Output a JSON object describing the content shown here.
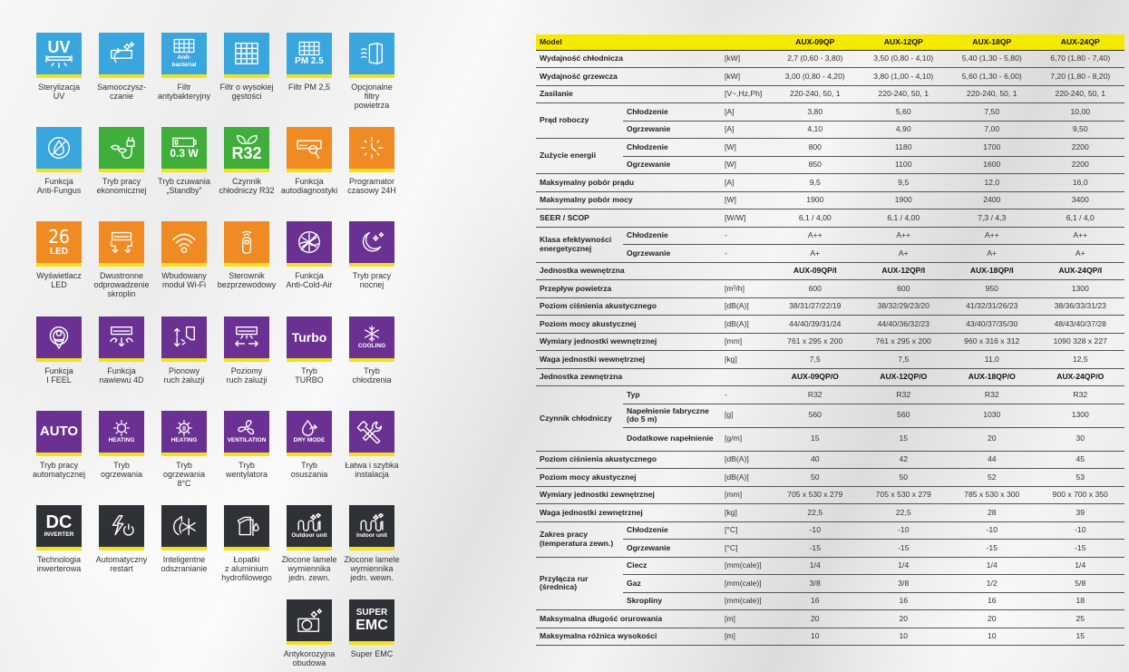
{
  "features": [
    {
      "label": "Sterylizacja\nUV",
      "color": "blue",
      "icon": "uv-lamp-icon",
      "text": "UV",
      "sub": ""
    },
    {
      "label": "Samooczysz-\nczanie",
      "color": "blue",
      "icon": "self-clean-icon",
      "text": "",
      "sub": ""
    },
    {
      "label": "Filtr\nantybakteryjny",
      "color": "blue",
      "icon": "antibacterial-filter-icon",
      "text": "",
      "sub": "Anti-\nbacterial"
    },
    {
      "label": "Filtr o wysokiej\ngęstości",
      "color": "blue",
      "icon": "high-density-filter-icon",
      "text": "",
      "sub": ""
    },
    {
      "label": "Filtr PM 2,5",
      "color": "blue",
      "icon": "pm25-filter-icon",
      "text": "",
      "sub": "PM 2.5"
    },
    {
      "label": "Opcjonalne\nfiltry\npowietrza",
      "color": "blue",
      "icon": "optional-filters-icon",
      "text": "",
      "sub": ""
    },
    {
      "label": "Funkcja\nAnti-Fungus",
      "color": "blue",
      "icon": "anti-fungus-icon",
      "text": "",
      "sub": ""
    },
    {
      "label": "Tryb pracy\nekonomicznej",
      "color": "green",
      "icon": "eco-plug-icon",
      "text": "",
      "sub": ""
    },
    {
      "label": "Tryb czuwania\n„Standby”",
      "color": "green",
      "icon": "battery-standby-icon",
      "text": "",
      "sub": "0.3 W"
    },
    {
      "label": "Czynnik\nchłodniczy R32",
      "color": "green",
      "icon": "leaves-icon",
      "text": "R32",
      "sub": ""
    },
    {
      "label": "Funkcja\nautodiagnostyki",
      "color": "orange",
      "icon": "self-diagnosis-icon",
      "text": "",
      "sub": ""
    },
    {
      "label": "Programator\nczasowy 24H",
      "color": "orange",
      "icon": "clock-timer-icon",
      "text": "",
      "sub": ""
    },
    {
      "label": "Wyświetlacz\nLED",
      "color": "orange",
      "icon": "led-display-icon",
      "text": "26",
      "sub": "LED"
    },
    {
      "label": "Dwustronne\nodprowadzenie\nskroplin",
      "color": "orange",
      "icon": "dual-drain-icon",
      "text": "",
      "sub": ""
    },
    {
      "label": "Wbudowany\nmoduł Wi-Fi",
      "color": "orange",
      "icon": "wifi-icon",
      "text": "",
      "sub": ""
    },
    {
      "label": "Sterownik\nbezprzewodowy",
      "color": "orange",
      "icon": "remote-control-icon",
      "text": "",
      "sub": ""
    },
    {
      "label": "Funkcja\nAnti-Cold-Air",
      "color": "purple",
      "icon": "anti-cold-air-icon",
      "text": "",
      "sub": ""
    },
    {
      "label": "Tryb pracy\nnocnej",
      "color": "purple",
      "icon": "moon-stars-icon",
      "text": "",
      "sub": ""
    },
    {
      "label": "Funkcja\nI FEEL",
      "color": "purple",
      "icon": "i-feel-icon",
      "text": "",
      "sub": ""
    },
    {
      "label": "Funkcja\nnawiewu 4D",
      "color": "purple",
      "icon": "airflow-4d-icon",
      "text": "",
      "sub": ""
    },
    {
      "label": "Pionowy\nruch żaluzji",
      "color": "purple",
      "icon": "vertical-swing-icon",
      "text": "",
      "sub": ""
    },
    {
      "label": "Poziomy\nruch żaluzji",
      "color": "purple",
      "icon": "horizontal-swing-icon",
      "text": "",
      "sub": ""
    },
    {
      "label": "Tryb\nTURBO",
      "color": "purple",
      "icon": "turbo-icon",
      "text": "Turbo",
      "sub": ""
    },
    {
      "label": "Tryb\nchłodzenia",
      "color": "purple",
      "icon": "snowflake-icon",
      "text": "",
      "sub": "COOLING"
    },
    {
      "label": "Tryb pracy\nautomatycznej",
      "color": "purple",
      "icon": "auto-mode-icon",
      "text": "AUTO",
      "sub": ""
    },
    {
      "label": "Tryb\nogrzewania",
      "color": "purple",
      "icon": "sun-heating-icon",
      "text": "",
      "sub": "HEATING"
    },
    {
      "label": "Tryb\nogrzewania\n8°C",
      "color": "purple",
      "icon": "sun-8-heating-icon",
      "text": "",
      "sub": "HEATING"
    },
    {
      "label": "Tryb\nwentylatora",
      "color": "purple",
      "icon": "fan-icon",
      "text": "",
      "sub": "VENTILATION"
    },
    {
      "label": "Tryb\nosuszania",
      "color": "purple",
      "icon": "droplet-icon",
      "text": "",
      "sub": "DRY MODE"
    },
    {
      "label": "Łatwa i szybka\ninstalacja",
      "color": "purple",
      "icon": "wrench-screwdriver-icon",
      "text": "",
      "sub": ""
    },
    {
      "label": "Technologia\ninwerterowa",
      "color": "dark",
      "icon": "dc-inverter-icon",
      "text": "DC",
      "sub": "INVERTER"
    },
    {
      "label": "Automatyczny\nrestart",
      "color": "dark",
      "icon": "auto-restart-icon",
      "text": "",
      "sub": ""
    },
    {
      "label": "Inteligentne\nodszranianie",
      "color": "dark",
      "icon": "defrost-icon",
      "text": "",
      "sub": ""
    },
    {
      "label": "Łopatki\nz aluminium\nhydrofilowego",
      "color": "dark",
      "icon": "hydrophilic-fins-icon",
      "text": "",
      "sub": ""
    },
    {
      "label": "Złocone lamele\nwymiennika\njedn. zewn.",
      "color": "dark",
      "icon": "golden-fin-outdoor-icon",
      "text": "",
      "sub": "Outdoor unit"
    },
    {
      "label": "Złocone lamele\nwymiennika\njedn. wewn.",
      "color": "dark",
      "icon": "golden-fin-indoor-icon",
      "text": "",
      "sub": "Indoor unit"
    },
    {
      "label": "Antykorozyjna\nobudowa",
      "color": "dark",
      "icon": "anticorrosion-case-icon",
      "text": "",
      "sub": ""
    },
    {
      "label": "Super EMC",
      "color": "dark",
      "icon": "super-emc-icon",
      "text": "EMC",
      "sub": "SUPER"
    }
  ],
  "table": {
    "header": {
      "label": "Model",
      "models": [
        "AUX-09QP",
        "AUX-12QP",
        "AUX-18QP",
        "AUX-24QP"
      ]
    },
    "rows": [
      {
        "param": "Wydajność chłodnicza",
        "unit": "[kW]",
        "values": [
          "2,7 (0,60 - 3,80)",
          "3,50 (0,80 - 4,10)",
          "5,40 (1,30 - 5,80)",
          "6,70 (1,80 - 7,40)"
        ]
      },
      {
        "param": "Wydajność grzewcza",
        "unit": "[kW]",
        "values": [
          "3,00 (0,80 - 4,20)",
          "3,80 (1,00 - 4,10)",
          "5,60 (1,30 - 6,00)",
          "7,20 (1,80 - 8,20)"
        ]
      },
      {
        "param": "Zasilanie",
        "unit": "[V~,Hz,Ph]",
        "values": [
          "220-240, 50, 1",
          "220-240, 50, 1",
          "220-240, 50, 1",
          "220-240, 50, 1"
        ]
      },
      {
        "group": "Prąd roboczy",
        "subs": [
          {
            "sub": "Chłodzenie",
            "unit": "[A]",
            "values": [
              "3,80",
              "5,60",
              "7,50",
              "10,00"
            ]
          },
          {
            "sub": "Ogrzewanie",
            "unit": "[A]",
            "values": [
              "4,10",
              "4,90",
              "7,00",
              "9,50"
            ]
          }
        ]
      },
      {
        "group": "Zużycie energii",
        "subs": [
          {
            "sub": "Chłodzenie",
            "unit": "[W]",
            "values": [
              "800",
              "1180",
              "1700",
              "2200"
            ]
          },
          {
            "sub": "Ogrzewanie",
            "unit": "[W]",
            "values": [
              "850",
              "1100",
              "1600",
              "2200"
            ]
          }
        ]
      },
      {
        "param": "Maksymalny pobór prądu",
        "unit": "[A]",
        "values": [
          "9,5",
          "9,5",
          "12,0",
          "16,0"
        ]
      },
      {
        "param": "Maksymalny pobór mocy",
        "unit": "[W]",
        "values": [
          "1900",
          "1900",
          "2400",
          "3400"
        ]
      },
      {
        "param": "SEER / SCOP",
        "unit": "[W/W]",
        "values": [
          "6,1 / 4,00",
          "6,1 / 4,00",
          "7,3 / 4,3",
          "6,1 / 4,0"
        ]
      },
      {
        "group": "Klasa efektywności energetycznej",
        "subs": [
          {
            "sub": "Chłodzenie",
            "unit": "-",
            "values": [
              "A++",
              "A++",
              "A++",
              "A++"
            ]
          },
          {
            "sub": "Ogrzewanie",
            "unit": "-",
            "values": [
              "A+",
              "A+",
              "A+",
              "A+"
            ]
          }
        ]
      },
      {
        "param": "Jednostka wewnętrzna",
        "unit": "",
        "bold": true,
        "values": [
          "AUX-09QP/I",
          "AUX-12QP/I",
          "AUX-18QP/I",
          "AUX-24QP/I"
        ]
      },
      {
        "param": "Przepływ powietrza",
        "unit": "[m³/h]",
        "values": [
          "600",
          "600",
          "950",
          "1300"
        ]
      },
      {
        "param": "Poziom ciśnienia akustycznego",
        "unit": "[dB(A)]",
        "values": [
          "38/31/27/22/19",
          "38/32/29/23/20",
          "41/32/31/26/23",
          "38/36/33/31/23"
        ]
      },
      {
        "param": "Poziom mocy akustycznej",
        "unit": "[dB(A)]",
        "values": [
          "44/40/39/31/24",
          "44/40/36/32/23",
          "43/40/37/35/30",
          "48/43/40/37/28"
        ]
      },
      {
        "param": "Wymiary jednostki wewnętrznej",
        "unit": "[mm]",
        "values": [
          "761 x 295 x 200",
          "761 x 295 x 200",
          "960 x 316 x 312",
          "1090  328 x 227"
        ]
      },
      {
        "param": "Waga jednostki wewnętrznej",
        "unit": "[kg]",
        "values": [
          "7,5",
          "7,5",
          "11,0",
          "12,5"
        ]
      },
      {
        "param": "Jednostka zewnętrzna",
        "unit": "",
        "bold": true,
        "values": [
          "AUX-09QP/O",
          "AUX-12QP/O",
          "AUX-18QP/O",
          "AUX-24QP/O"
        ]
      },
      {
        "group": "Czynnik chłodniczy",
        "subs": [
          {
            "sub": "Typ",
            "unit": "-",
            "values": [
              "R32",
              "R32",
              "R32",
              "R32"
            ]
          },
          {
            "sub": "Napełnienie fabryczne (do 5 m)",
            "unit": "[g]",
            "tall": true,
            "values": [
              "560",
              "560",
              "1030",
              "1300"
            ]
          },
          {
            "sub": "Dodatkowe napełnienie",
            "unit": "[g/m]",
            "tall": true,
            "values": [
              "15",
              "15",
              "20",
              "30"
            ]
          }
        ]
      },
      {
        "param": "Poziom ciśnienia akustycznego",
        "unit": "[dB(A)]",
        "values": [
          "40",
          "42",
          "44",
          "45"
        ]
      },
      {
        "param": "Poziom mocy akustycznej",
        "unit": "[dB(A)]",
        "values": [
          "50",
          "50",
          "52",
          "53"
        ]
      },
      {
        "param": "Wymiary jednostki zewnętrznej",
        "unit": "[mm]",
        "values": [
          "705 x 530 x 279",
          "705 x 530 x 279",
          "785 x 530 x 300",
          "900 x 700 x 350"
        ]
      },
      {
        "param": "Waga jednostki zewnętrznej",
        "unit": "[kg]",
        "values": [
          "22,5",
          "22,5",
          "28",
          "39"
        ]
      },
      {
        "group": "Zakres pracy (temperatura zewn.)",
        "subs": [
          {
            "sub": "Chłodzenie",
            "unit": "[°C]",
            "values": [
              "-10",
              "-10",
              "-10",
              "-10"
            ]
          },
          {
            "sub": "Ogrzewanie",
            "unit": "[°C]",
            "values": [
              "-15",
              "-15",
              "-15",
              "-15"
            ]
          }
        ]
      },
      {
        "group": "Przyłącza rur (średnica)",
        "subs": [
          {
            "sub": "Ciecz",
            "unit": "[mm(cale)]",
            "values": [
              "1/4",
              "1/4",
              "1/4",
              "1/4"
            ]
          },
          {
            "sub": "Gaz",
            "unit": "[mm(cale)]",
            "values": [
              "3/8",
              "3/8",
              "1/2",
              "5/8"
            ]
          },
          {
            "sub": "Skropliny",
            "unit": "[mm(cale)]",
            "values": [
              "16",
              "16",
              "16",
              "18"
            ]
          }
        ]
      },
      {
        "param": "Maksymalna długość orurowania",
        "unit": "[m]",
        "values": [
          "20",
          "20",
          "20",
          "25"
        ]
      },
      {
        "param": "Maksymalna różnica wysokości",
        "unit": "[m]",
        "values": [
          "10",
          "10",
          "10",
          "15"
        ]
      }
    ]
  }
}
